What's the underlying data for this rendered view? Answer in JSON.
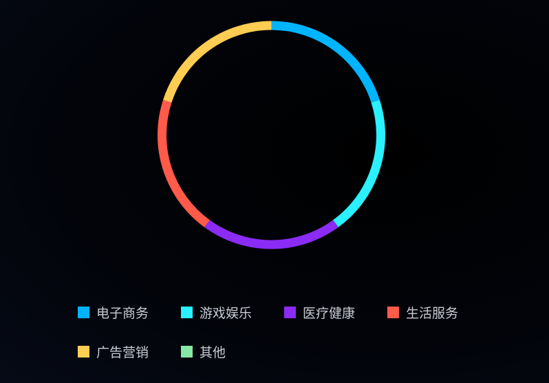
{
  "chart_data": {
    "type": "pie",
    "variant": "donut",
    "series": [
      {
        "name": "电子商务",
        "value": 20,
        "color": "#00b4ff"
      },
      {
        "name": "游戏娱乐",
        "value": 20,
        "color": "#2af0ff"
      },
      {
        "name": "医疗健康",
        "value": 20,
        "color": "#8a2cf5"
      },
      {
        "name": "生活服务",
        "value": 20,
        "color": "#ff5a4a"
      },
      {
        "name": "广告营销",
        "value": 20,
        "color": "#ffcd52"
      },
      {
        "name": "其他",
        "value": 0,
        "color": "#87e8a3"
      }
    ],
    "legend": "bottom",
    "background": "#03050c"
  }
}
